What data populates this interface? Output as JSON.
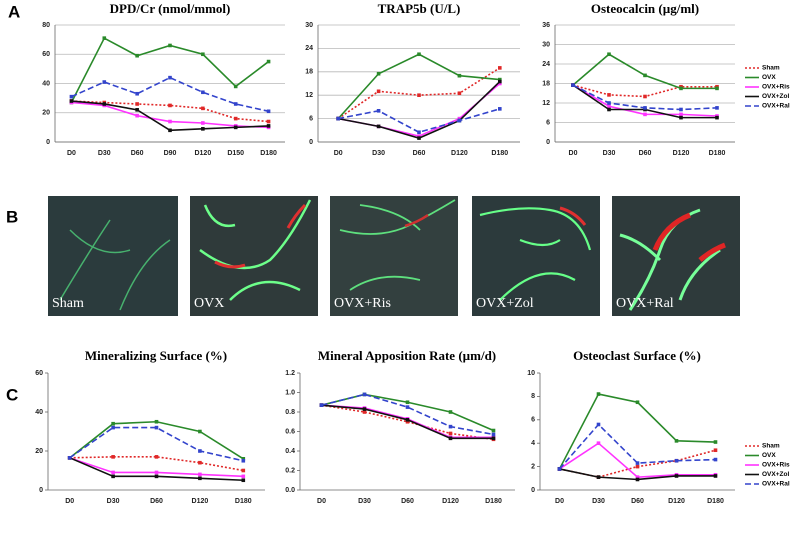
{
  "panel_labels": [
    "A",
    "B",
    "C"
  ],
  "images": [
    {
      "label": "Sham"
    },
    {
      "label": "OVX"
    },
    {
      "label": "OVX+Ris"
    },
    {
      "label": "OVX+Zol"
    },
    {
      "label": "OVX+Ral"
    }
  ],
  "chart_data": [
    {
      "type": "line",
      "title": "DPD/Cr (nmol/mmol)",
      "categories": [
        "D0",
        "D30",
        "D60",
        "D90",
        "D120",
        "D150",
        "D180"
      ],
      "ylim": [
        0,
        80
      ],
      "yticks": [
        0,
        20,
        40,
        60,
        80
      ],
      "grid": true,
      "legend": false,
      "series": [
        {
          "color": "#e02828",
          "style": "dotted",
          "values": [
            28,
            27,
            26,
            25,
            23,
            16,
            14
          ]
        },
        {
          "color": "#2a8a2a",
          "style": "solid",
          "values": [
            27,
            71,
            59,
            66,
            60,
            38,
            55
          ]
        },
        {
          "color": "#ff33ff",
          "style": "solid",
          "values": [
            27,
            25,
            18,
            14,
            13,
            11,
            10
          ]
        },
        {
          "color": "#111111",
          "style": "solid",
          "values": [
            28,
            26,
            22,
            8,
            9,
            10,
            11
          ]
        },
        {
          "color": "#3344cc",
          "style": "dashed",
          "values": [
            31,
            41,
            33,
            44,
            34,
            26,
            21
          ]
        }
      ]
    },
    {
      "type": "line",
      "title": "TRAP5b (U/L)",
      "categories": [
        "D0",
        "D30",
        "D60",
        "D120",
        "D180"
      ],
      "ylim": [
        0,
        30
      ],
      "yticks": [
        0,
        6,
        12,
        18,
        24,
        30
      ],
      "grid": true,
      "legend": false,
      "series": [
        {
          "color": "#e02828",
          "style": "dotted",
          "values": [
            6,
            13,
            12,
            12.5,
            19
          ]
        },
        {
          "color": "#2a8a2a",
          "style": "solid",
          "values": [
            6,
            17.5,
            22.5,
            17,
            16
          ]
        },
        {
          "color": "#ff33ff",
          "style": "solid",
          "values": [
            6,
            4,
            1.5,
            6,
            15
          ]
        },
        {
          "color": "#111111",
          "style": "solid",
          "values": [
            6,
            4,
            1,
            5.5,
            15.5
          ]
        },
        {
          "color": "#3344cc",
          "style": "dashed",
          "values": [
            6,
            8,
            2.5,
            5.5,
            8.5
          ]
        }
      ]
    },
    {
      "type": "line",
      "title": "Osteocalcin (µg/ml)",
      "categories": [
        "D0",
        "D30",
        "D60",
        "D120",
        "D180"
      ],
      "ylim": [
        0,
        36
      ],
      "yticks": [
        0,
        6,
        12,
        18,
        24,
        30,
        36
      ],
      "grid": true,
      "legend": true,
      "series": [
        {
          "name": "Sham",
          "color": "#e02828",
          "style": "dotted",
          "values": [
            17.5,
            14.5,
            14,
            17,
            17
          ]
        },
        {
          "name": "OVX",
          "color": "#2a8a2a",
          "style": "solid",
          "values": [
            17.5,
            27,
            20.5,
            16.5,
            16.5
          ]
        },
        {
          "name": "OVX+Ris",
          "color": "#ff33ff",
          "style": "solid",
          "values": [
            17.5,
            11,
            8.5,
            8.5,
            8
          ]
        },
        {
          "name": "OVX+Zol",
          "color": "#111111",
          "style": "solid",
          "values": [
            17.5,
            10,
            10,
            7.5,
            7.5
          ]
        },
        {
          "name": "OVX+Ral",
          "color": "#3344cc",
          "style": "dashed",
          "values": [
            17.5,
            12,
            10.5,
            10,
            10.5
          ]
        }
      ]
    },
    {
      "type": "line",
      "title": "Mineralizing Surface (%)",
      "categories": [
        "D0",
        "D30",
        "D60",
        "D120",
        "D180"
      ],
      "ylim": [
        0,
        60
      ],
      "yticks": [
        0,
        20,
        40,
        60
      ],
      "grid": false,
      "legend": false,
      "series": [
        {
          "color": "#e02828",
          "style": "dotted",
          "values": [
            16.5,
            17,
            17,
            14,
            10
          ]
        },
        {
          "color": "#2a8a2a",
          "style": "solid",
          "values": [
            16.5,
            34,
            35,
            30,
            16
          ]
        },
        {
          "color": "#ff33ff",
          "style": "solid",
          "values": [
            16.5,
            9,
            9,
            8,
            7
          ]
        },
        {
          "color": "#111111",
          "style": "solid",
          "values": [
            16.5,
            7,
            7,
            6,
            5
          ]
        },
        {
          "color": "#3344cc",
          "style": "dashed",
          "values": [
            16.5,
            32,
            32,
            20,
            15
          ]
        }
      ]
    },
    {
      "type": "line",
      "title": "Mineral Apposition Rate (µm/d)",
      "categories": [
        "D0",
        "D30",
        "D60",
        "D120",
        "D180"
      ],
      "ylim": [
        0,
        1.2
      ],
      "yticks": [
        {
          "value": 0,
          "label": "0.0"
        },
        0.2,
        0.4,
        0.6,
        0.8,
        {
          "value": 1,
          "label": "1.0"
        },
        1.2
      ],
      "grid": false,
      "legend": false,
      "series": [
        {
          "color": "#e02828",
          "style": "dotted",
          "values": [
            0.87,
            0.8,
            0.7,
            0.58,
            0.52
          ]
        },
        {
          "color": "#2a8a2a",
          "style": "solid",
          "values": [
            0.87,
            0.98,
            0.9,
            0.8,
            0.61
          ]
        },
        {
          "color": "#ff33ff",
          "style": "solid",
          "values": [
            0.87,
            0.84,
            0.73,
            0.54,
            0.54
          ]
        },
        {
          "color": "#111111",
          "style": "solid",
          "values": [
            0.87,
            0.83,
            0.72,
            0.53,
            0.53
          ]
        },
        {
          "color": "#3344cc",
          "style": "dashed",
          "values": [
            0.87,
            0.98,
            0.85,
            0.65,
            0.57
          ]
        }
      ]
    },
    {
      "type": "line",
      "title": "Osteoclast Surface (%)",
      "categories": [
        "D0",
        "D30",
        "D60",
        "D120",
        "D180"
      ],
      "ylim": [
        0,
        10
      ],
      "yticks": [
        0,
        2,
        4,
        6,
        8,
        10
      ],
      "grid": false,
      "legend": true,
      "series": [
        {
          "name": "Sham",
          "color": "#e02828",
          "style": "dotted",
          "values": [
            1.8,
            1.1,
            2,
            2.5,
            3.4
          ]
        },
        {
          "name": "OVX",
          "color": "#2a8a2a",
          "style": "solid",
          "values": [
            1.8,
            8.2,
            7.5,
            4.2,
            4.1
          ]
        },
        {
          "name": "OVX+Ris",
          "color": "#ff33ff",
          "style": "solid",
          "values": [
            1.8,
            4,
            1.1,
            1.3,
            1.3
          ]
        },
        {
          "name": "OVX+Zol",
          "color": "#111111",
          "style": "solid",
          "values": [
            1.8,
            1.1,
            0.9,
            1.2,
            1.2
          ]
        },
        {
          "name": "OVX+Ral",
          "color": "#3344cc",
          "style": "dashed",
          "values": [
            1.8,
            5.6,
            2.3,
            2.5,
            2.6
          ]
        }
      ]
    }
  ]
}
